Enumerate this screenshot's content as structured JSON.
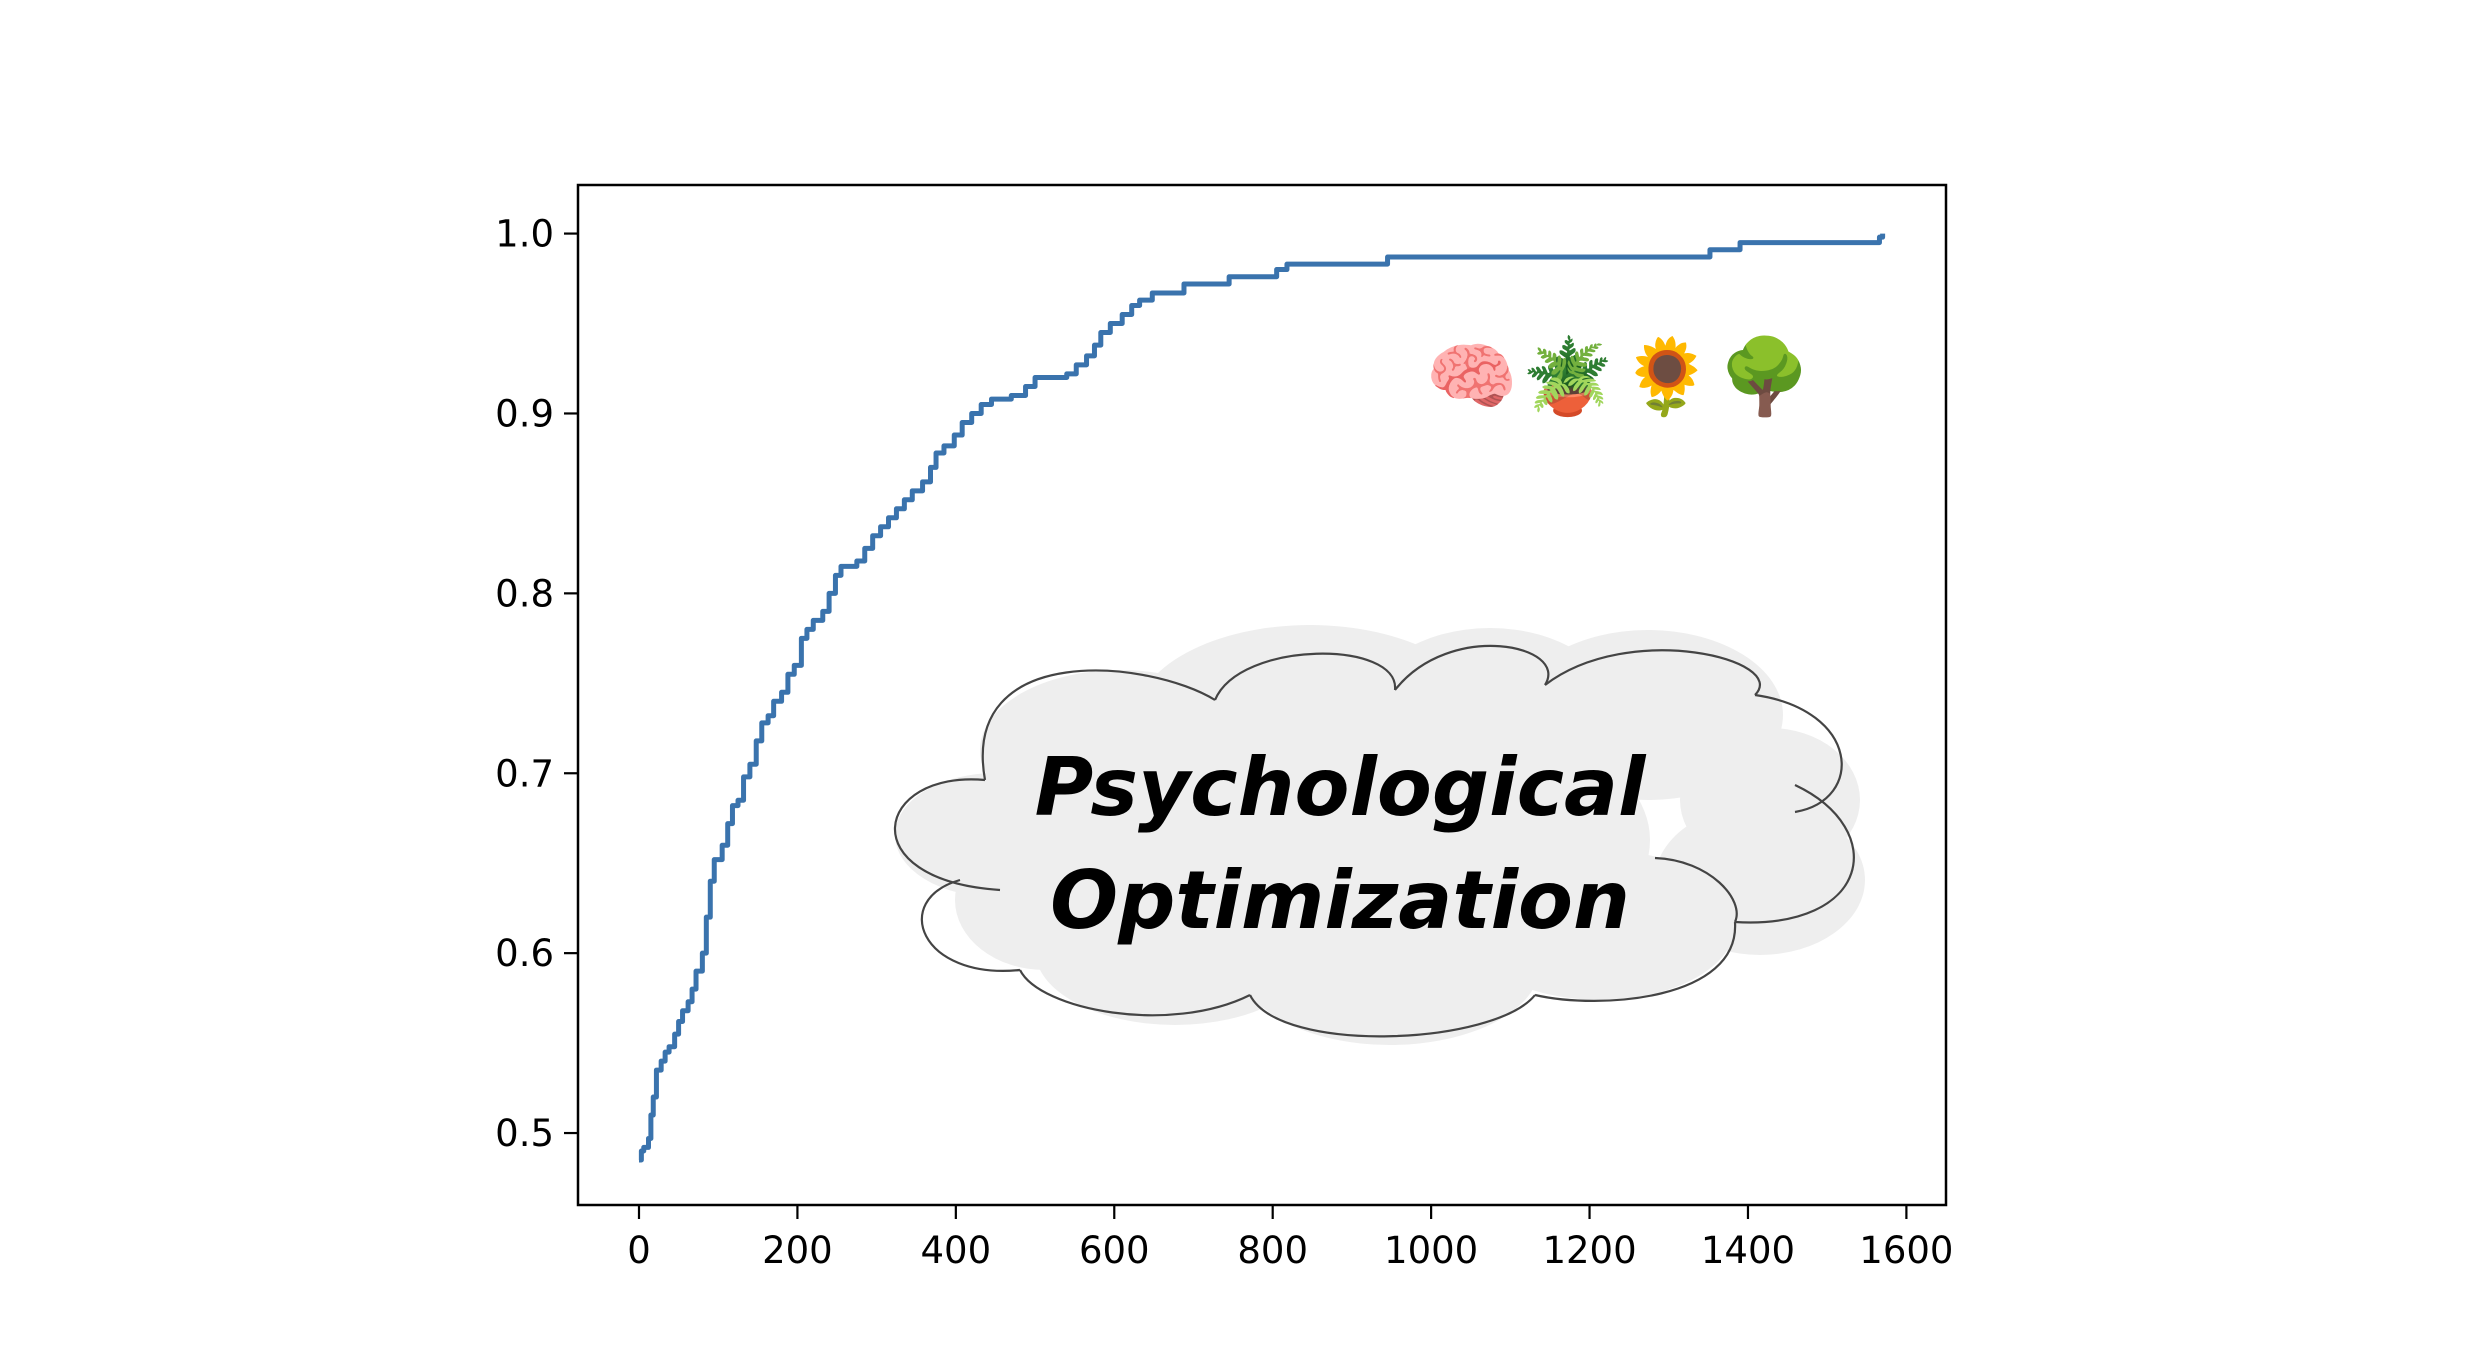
{
  "chart_data": {
    "type": "line",
    "title": "",
    "xlabel": "",
    "ylabel": "",
    "xlim": [
      -77,
      1650
    ],
    "ylim": [
      0.46,
      1.027
    ],
    "x_ticks": [
      0,
      200,
      400,
      600,
      800,
      1000,
      1200,
      1400,
      1600
    ],
    "y_ticks": [
      0.5,
      0.6,
      0.7,
      0.8,
      0.9,
      1.0
    ],
    "grid": false,
    "series": [
      {
        "color": "#3a73ad",
        "step": true,
        "points": [
          [
            0,
            0.485
          ],
          [
            3,
            0.49
          ],
          [
            6,
            0.492
          ],
          [
            12,
            0.497
          ],
          [
            15,
            0.51
          ],
          [
            18,
            0.52
          ],
          [
            22,
            0.535
          ],
          [
            28,
            0.54
          ],
          [
            33,
            0.545
          ],
          [
            38,
            0.548
          ],
          [
            45,
            0.555
          ],
          [
            50,
            0.562
          ],
          [
            55,
            0.568
          ],
          [
            62,
            0.573
          ],
          [
            67,
            0.58
          ],
          [
            72,
            0.59
          ],
          [
            80,
            0.6
          ],
          [
            85,
            0.62
          ],
          [
            90,
            0.64
          ],
          [
            95,
            0.652
          ],
          [
            105,
            0.66
          ],
          [
            112,
            0.672
          ],
          [
            118,
            0.682
          ],
          [
            125,
            0.685
          ],
          [
            132,
            0.698
          ],
          [
            140,
            0.705
          ],
          [
            148,
            0.718
          ],
          [
            155,
            0.728
          ],
          [
            163,
            0.732
          ],
          [
            170,
            0.74
          ],
          [
            180,
            0.745
          ],
          [
            188,
            0.755
          ],
          [
            196,
            0.76
          ],
          [
            205,
            0.775
          ],
          [
            212,
            0.78
          ],
          [
            220,
            0.785
          ],
          [
            232,
            0.79
          ],
          [
            240,
            0.8
          ],
          [
            248,
            0.81
          ],
          [
            255,
            0.815
          ],
          [
            275,
            0.818
          ],
          [
            285,
            0.825
          ],
          [
            295,
            0.832
          ],
          [
            305,
            0.837
          ],
          [
            315,
            0.842
          ],
          [
            325,
            0.847
          ],
          [
            335,
            0.852
          ],
          [
            345,
            0.857
          ],
          [
            358,
            0.862
          ],
          [
            368,
            0.87
          ],
          [
            375,
            0.878
          ],
          [
            385,
            0.882
          ],
          [
            398,
            0.888
          ],
          [
            408,
            0.895
          ],
          [
            420,
            0.9
          ],
          [
            432,
            0.905
          ],
          [
            445,
            0.908
          ],
          [
            470,
            0.91
          ],
          [
            488,
            0.915
          ],
          [
            500,
            0.92
          ],
          [
            540,
            0.922
          ],
          [
            552,
            0.927
          ],
          [
            565,
            0.932
          ],
          [
            575,
            0.938
          ],
          [
            583,
            0.945
          ],
          [
            595,
            0.95
          ],
          [
            610,
            0.955
          ],
          [
            622,
            0.96
          ],
          [
            632,
            0.963
          ],
          [
            648,
            0.967
          ],
          [
            688,
            0.972
          ],
          [
            745,
            0.976
          ],
          [
            805,
            0.98
          ],
          [
            818,
            0.983
          ],
          [
            945,
            0.987
          ],
          [
            1352,
            0.991
          ],
          [
            1390,
            0.995
          ],
          [
            1563,
            0.995
          ],
          [
            1566,
            0.998
          ],
          [
            1570,
            1.0
          ]
        ]
      }
    ]
  },
  "cloud": {
    "line1": "Psychological",
    "line2": "Optimization",
    "fill": "#eeeeee",
    "stroke": "#444444"
  },
  "emojis": [
    {
      "icon": "brain-icon",
      "glyph": "🧠"
    },
    {
      "icon": "potted-plant-icon",
      "glyph": "🪴"
    },
    {
      "icon": "sunflower-icon",
      "glyph": "🌻"
    },
    {
      "icon": "tree-icon",
      "glyph": "🌳"
    }
  ]
}
